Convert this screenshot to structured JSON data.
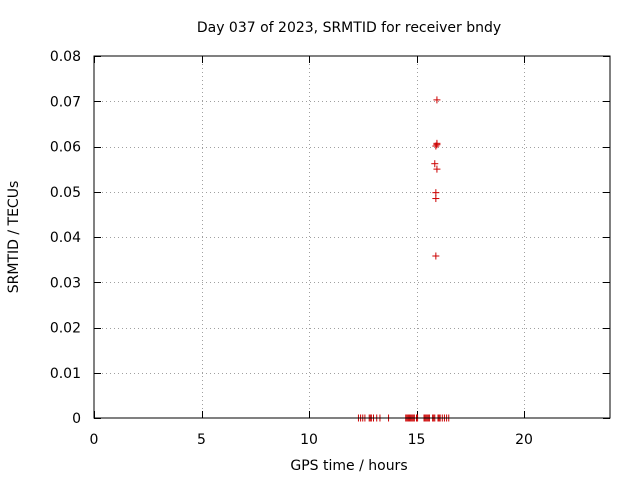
{
  "chart_data": {
    "type": "scatter",
    "title": "Day 037 of 2023, SRMTID for receiver bndy",
    "xlabel": "GPS time / hours",
    "ylabel": "SRMTID / TECUs",
    "xlim": [
      0,
      24
    ],
    "ylim": [
      0,
      0.08
    ],
    "grid": true,
    "marker": "+",
    "series_color": "#cc0000",
    "x_ticks": [
      0,
      5,
      10,
      15,
      20
    ],
    "x_tick_labels": [
      "0",
      "5",
      "10",
      "15",
      "20"
    ],
    "y_ticks": [
      0,
      0.01,
      0.02,
      0.03,
      0.04,
      0.05,
      0.06,
      0.07,
      0.08
    ],
    "y_tick_labels": [
      "0",
      "0.01",
      "0.02",
      "0.03",
      "0.04",
      "0.05",
      "0.06",
      "0.07",
      "0.08"
    ],
    "series": [
      {
        "name": "SRMTID",
        "points": [
          [
            12.3,
            0
          ],
          [
            12.4,
            0
          ],
          [
            12.5,
            0
          ],
          [
            12.6,
            0
          ],
          [
            12.8,
            0
          ],
          [
            12.85,
            0
          ],
          [
            12.9,
            0
          ],
          [
            13.0,
            0
          ],
          [
            13.15,
            0
          ],
          [
            13.3,
            0
          ],
          [
            13.7,
            0
          ],
          [
            14.5,
            0
          ],
          [
            14.55,
            0
          ],
          [
            14.6,
            0
          ],
          [
            14.65,
            0
          ],
          [
            14.7,
            0
          ],
          [
            14.75,
            0
          ],
          [
            14.8,
            0
          ],
          [
            14.85,
            0
          ],
          [
            14.9,
            0
          ],
          [
            15.0,
            0
          ],
          [
            15.05,
            0
          ],
          [
            15.35,
            0
          ],
          [
            15.4,
            0
          ],
          [
            15.45,
            0
          ],
          [
            15.5,
            0
          ],
          [
            15.55,
            0
          ],
          [
            15.6,
            0
          ],
          [
            15.75,
            0
          ],
          [
            15.8,
            0
          ],
          [
            15.85,
            0
          ],
          [
            16.0,
            0
          ],
          [
            16.05,
            0
          ],
          [
            16.1,
            0
          ],
          [
            16.2,
            0
          ],
          [
            16.3,
            0
          ],
          [
            16.4,
            0
          ],
          [
            16.5,
            0
          ],
          [
            15.9,
            0.0358
          ],
          [
            15.9,
            0.0485
          ],
          [
            15.9,
            0.0498
          ],
          [
            15.95,
            0.055
          ],
          [
            15.85,
            0.0562
          ],
          [
            15.9,
            0.0601
          ],
          [
            15.95,
            0.0604
          ],
          [
            15.95,
            0.0607
          ],
          [
            15.95,
            0.0703
          ]
        ]
      }
    ]
  }
}
